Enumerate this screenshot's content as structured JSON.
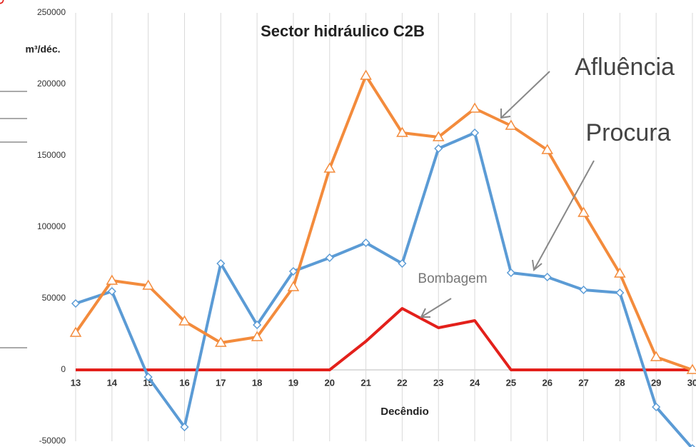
{
  "chart_data": {
    "type": "line",
    "title": "Sector hidráulico C2B",
    "y_label": "m³/déc.",
    "x_label": "Decêndio",
    "x": [
      13,
      14,
      15,
      16,
      17,
      18,
      19,
      20,
      21,
      22,
      23,
      24,
      25,
      26,
      27,
      28,
      29,
      30
    ],
    "series": [
      {
        "name": "Afluência",
        "color": "#f38b3c",
        "marker": "triangle",
        "values": [
          26000,
          62500,
          59000,
          34000,
          19000,
          23000,
          58000,
          141000,
          206000,
          166000,
          163000,
          183000,
          171000,
          154000,
          110000,
          67500,
          9000,
          0
        ]
      },
      {
        "name": "Procura",
        "color": "#5b9bd5",
        "marker": "diamond",
        "values": [
          46500,
          55000,
          -5000,
          -40000,
          74500,
          31500,
          69000,
          78500,
          89000,
          74500,
          155000,
          166000,
          68000,
          65000,
          56000,
          54000,
          -26000,
          -55000
        ]
      },
      {
        "name": "Bombagem",
        "color": "#e3201b",
        "marker": "circle",
        "values": [
          0,
          0,
          0,
          0,
          0,
          0,
          0,
          0,
          20000,
          43000,
          29500,
          34500,
          0,
          0,
          0,
          0,
          0,
          0
        ]
      }
    ],
    "xlim": [
      13,
      30
    ],
    "xticks": [
      13,
      14,
      15,
      16,
      17,
      18,
      19,
      20,
      21,
      22,
      23,
      24,
      25,
      26,
      27,
      28,
      29,
      30
    ],
    "ylim": [
      -50000,
      250000
    ],
    "yticks": [
      -50000,
      0,
      50000,
      100000,
      150000,
      200000,
      250000
    ],
    "grid": "x"
  }
}
